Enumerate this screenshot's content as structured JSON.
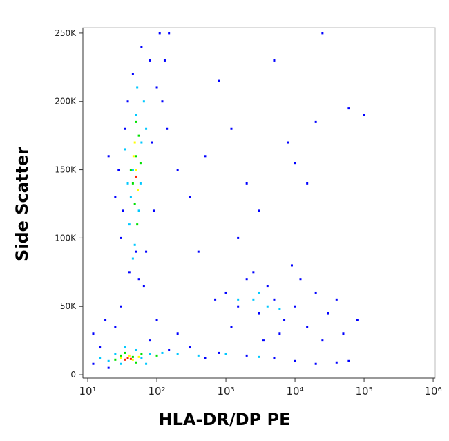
{
  "chart_data": {
    "type": "scatter",
    "x_label": "HLA-DR/DP PE",
    "y_label": "Side Scatter",
    "xscale": "log",
    "xlim": [
      8.5,
      1070000
    ],
    "xticks": [
      {
        "value": 10,
        "label": "10¹"
      },
      {
        "value": 100,
        "label": "10²"
      },
      {
        "value": 1000,
        "label": "10³"
      },
      {
        "value": 10000,
        "label": "10⁴"
      },
      {
        "value": 100000,
        "label": "10⁵"
      },
      {
        "value": 1000000,
        "label": "10⁶"
      }
    ],
    "ylim": [
      -2500,
      254000
    ],
    "yticks": [
      0,
      {
        "value": 50000,
        "label": "50K"
      },
      {
        "value": 100000,
        "label": "100K"
      },
      {
        "value": 150000,
        "label": "150K"
      },
      {
        "value": 200000,
        "label": "200K"
      },
      {
        "value": 250000,
        "label": "250K"
      }
    ],
    "series": [
      {
        "color": "#0000ff",
        "x": [
          30,
          35,
          45,
          60,
          80,
          100,
          28,
          32,
          70,
          85,
          40,
          55,
          65,
          110,
          130,
          120,
          25,
          90,
          50,
          38,
          150,
          140,
          20,
          200,
          12,
          15,
          20,
          80,
          150,
          300,
          500,
          800,
          2000,
          5000,
          10000,
          20000,
          40000,
          60000,
          12,
          18,
          25,
          100,
          200,
          30,
          1000,
          1500,
          2000,
          3000,
          4000,
          5000,
          7000,
          10000,
          15000,
          20000,
          30000,
          50000,
          80000,
          700,
          1200,
          2500,
          6000,
          12000,
          40000,
          25000,
          3500,
          9000,
          300,
          500,
          1200,
          2000,
          5000,
          10000,
          3000,
          800,
          100000,
          20000,
          8000,
          15000,
          1500,
          400,
          60000,
          25000
        ],
        "values": [
          100000,
          180000,
          220000,
          240000,
          230000,
          210000,
          150000,
          120000,
          90000,
          170000,
          75000,
          70000,
          65000,
          250000,
          230000,
          200000,
          130000,
          120000,
          90000,
          200000,
          250000,
          180000,
          160000,
          150000,
          8000,
          20000,
          5000,
          25000,
          18000,
          20000,
          12000,
          16000,
          14000,
          12000,
          10000,
          8000,
          9000,
          10000,
          30000,
          40000,
          35000,
          40000,
          30000,
          50000,
          60000,
          50000,
          70000,
          45000,
          65000,
          55000,
          40000,
          50000,
          35000,
          60000,
          45000,
          30000,
          40000,
          55000,
          35000,
          75000,
          30000,
          70000,
          55000,
          25000,
          25000,
          80000,
          130000,
          160000,
          180000,
          140000,
          230000,
          155000,
          120000,
          215000,
          190000,
          185000,
          170000,
          140000,
          100000,
          90000,
          195000,
          250000
        ]
      },
      {
        "color": "#00c8ff",
        "x": [
          40,
          45,
          50,
          55,
          60,
          42,
          65,
          48,
          58,
          35,
          52,
          70,
          45,
          38,
          20,
          25,
          30,
          50,
          60,
          80,
          120,
          200,
          400,
          1000,
          3000,
          15,
          70,
          35,
          2500,
          4000,
          6000,
          3000,
          1500
        ],
        "values": [
          110000,
          150000,
          190000,
          120000,
          170000,
          130000,
          200000,
          95000,
          140000,
          165000,
          210000,
          180000,
          85000,
          140000,
          10000,
          15000,
          8000,
          18000,
          12000,
          15000,
          16000,
          15000,
          14000,
          15000,
          13000,
          12000,
          8000,
          20000,
          55000,
          50000,
          48000,
          60000,
          55000
        ]
      },
      {
        "color": "#00e000",
        "x": [
          45,
          50,
          55,
          48,
          52,
          58,
          42,
          50,
          25,
          30,
          45,
          50,
          60,
          100,
          35
        ],
        "values": [
          140000,
          160000,
          175000,
          125000,
          110000,
          155000,
          150000,
          185000,
          11000,
          14000,
          13000,
          9000,
          15000,
          14000,
          16000
        ]
      },
      {
        "color": "#ffff00",
        "x": [
          50,
          48,
          53,
          46,
          30,
          45,
          40,
          55
        ],
        "values": [
          150000,
          170000,
          135000,
          160000,
          12000,
          11000,
          14000,
          13000
        ]
      },
      {
        "color": "#ff2000",
        "x": [
          38,
          42,
          35,
          50
        ],
        "values": [
          12000,
          11500,
          11000,
          145000
        ]
      }
    ]
  }
}
